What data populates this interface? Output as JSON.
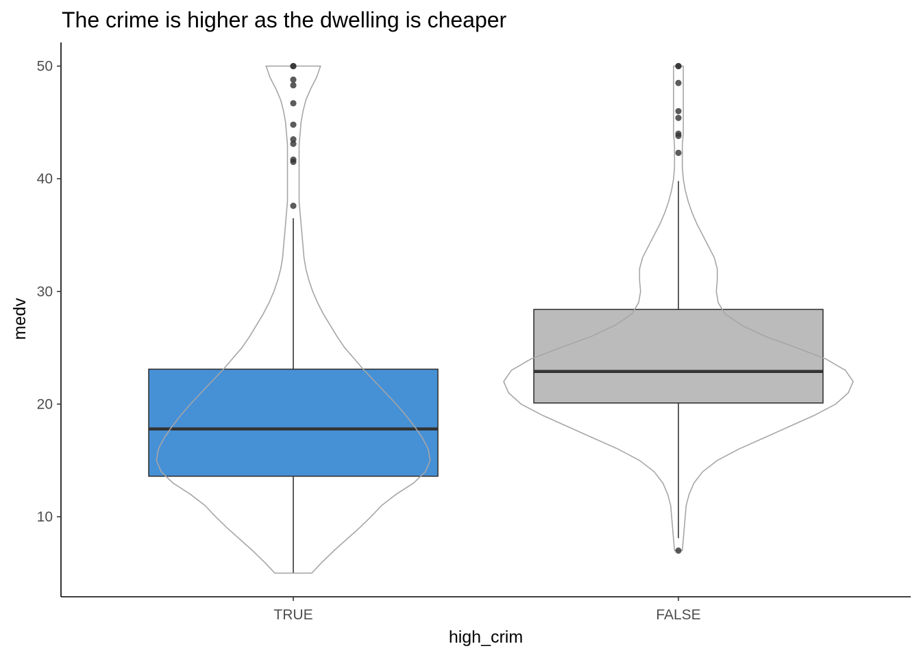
{
  "chart_data": {
    "type": "violin-box",
    "title": "The crime is higher as the dwelling is cheaper",
    "xlabel": "high_crim",
    "ylabel": "medv",
    "ylim": [
      2.9,
      52.1
    ],
    "yticks": [
      10,
      20,
      30,
      40,
      50
    ],
    "categories": [
      "TRUE",
      "FALSE"
    ],
    "grid": false,
    "legend": "none",
    "series": [
      {
        "category": "TRUE",
        "fill": "#4690d6",
        "box": {
          "q1": 13.6,
          "median": 17.8,
          "q3": 23.1,
          "whisker_low": 5.0,
          "whisker_high": 36.5
        },
        "outliers": [
          37.6,
          41.5,
          41.7,
          43.1,
          43.5,
          44.8,
          46.7,
          48.3,
          48.8,
          50.0,
          50.0
        ],
        "violin": {
          "ymin": 5.0,
          "ymax": 50.0,
          "density": [
            [
              5.0,
              0.19
            ],
            [
              6.0,
              0.3
            ],
            [
              7.0,
              0.42
            ],
            [
              8.0,
              0.55
            ],
            [
              9.0,
              0.68
            ],
            [
              10.0,
              0.8
            ],
            [
              11.0,
              0.91
            ],
            [
              12.0,
              1.06
            ],
            [
              13.0,
              1.24
            ],
            [
              14.0,
              1.36
            ],
            [
              15.0,
              1.41
            ],
            [
              16.0,
              1.39
            ],
            [
              17.0,
              1.33
            ],
            [
              18.0,
              1.25
            ],
            [
              19.0,
              1.16
            ],
            [
              20.0,
              1.06
            ],
            [
              21.0,
              0.95
            ],
            [
              22.0,
              0.84
            ],
            [
              23.0,
              0.73
            ],
            [
              24.0,
              0.63
            ],
            [
              25.0,
              0.53
            ],
            [
              26.0,
              0.45
            ],
            [
              27.0,
              0.38
            ],
            [
              28.0,
              0.31
            ],
            [
              29.0,
              0.25
            ],
            [
              30.0,
              0.2
            ],
            [
              31.0,
              0.16
            ],
            [
              32.0,
              0.13
            ],
            [
              33.0,
              0.11
            ],
            [
              34.0,
              0.1
            ],
            [
              35.0,
              0.09
            ],
            [
              36.0,
              0.08
            ],
            [
              37.0,
              0.07
            ],
            [
              38.0,
              0.06
            ],
            [
              39.0,
              0.06
            ],
            [
              40.0,
              0.06
            ],
            [
              41.0,
              0.06
            ],
            [
              42.0,
              0.06
            ],
            [
              43.0,
              0.06
            ],
            [
              44.0,
              0.07
            ],
            [
              45.0,
              0.08
            ],
            [
              46.0,
              0.1
            ],
            [
              47.0,
              0.13
            ],
            [
              48.0,
              0.18
            ],
            [
              49.0,
              0.24
            ],
            [
              50.0,
              0.28
            ]
          ]
        }
      },
      {
        "category": "FALSE",
        "fill": "#bbbbbb",
        "box": {
          "q1": 20.1,
          "median": 22.9,
          "q3": 28.4,
          "whisker_low": 8.1,
          "whisker_high": 39.8
        },
        "outliers": [
          7.0,
          42.3,
          43.8,
          44.0,
          45.4,
          46.0,
          48.5,
          50.0,
          50.0
        ],
        "violin": {
          "ymin": 7.0,
          "ymax": 50.0,
          "density": [
            [
              7.0,
              0.04
            ],
            [
              8.0,
              0.05
            ],
            [
              9.0,
              0.06
            ],
            [
              10.0,
              0.07
            ],
            [
              11.0,
              0.08
            ],
            [
              12.0,
              0.11
            ],
            [
              13.0,
              0.16
            ],
            [
              14.0,
              0.25
            ],
            [
              15.0,
              0.4
            ],
            [
              16.0,
              0.62
            ],
            [
              17.0,
              0.88
            ],
            [
              18.0,
              1.14
            ],
            [
              19.0,
              1.4
            ],
            [
              20.0,
              1.62
            ],
            [
              21.0,
              1.75
            ],
            [
              22.0,
              1.8
            ],
            [
              23.0,
              1.72
            ],
            [
              24.0,
              1.52
            ],
            [
              25.0,
              1.22
            ],
            [
              26.0,
              0.9
            ],
            [
              27.0,
              0.65
            ],
            [
              28.0,
              0.48
            ],
            [
              29.0,
              0.41
            ],
            [
              30.0,
              0.39
            ],
            [
              31.0,
              0.4
            ],
            [
              32.0,
              0.4
            ],
            [
              33.0,
              0.37
            ],
            [
              34.0,
              0.31
            ],
            [
              35.0,
              0.25
            ],
            [
              36.0,
              0.19
            ],
            [
              37.0,
              0.14
            ],
            [
              38.0,
              0.1
            ],
            [
              39.0,
              0.07
            ],
            [
              40.0,
              0.05
            ],
            [
              41.0,
              0.04
            ],
            [
              42.0,
              0.04
            ],
            [
              43.0,
              0.04
            ],
            [
              44.0,
              0.05
            ],
            [
              45.0,
              0.05
            ],
            [
              46.0,
              0.05
            ],
            [
              47.0,
              0.05
            ],
            [
              48.0,
              0.05
            ],
            [
              49.0,
              0.05
            ],
            [
              50.0,
              0.05
            ]
          ]
        }
      }
    ],
    "colors": {
      "violin_outline": "#a6a6a6",
      "box_outline": "#333333",
      "median_line": "#333333",
      "point": "#333333",
      "axis": "#000000"
    }
  }
}
